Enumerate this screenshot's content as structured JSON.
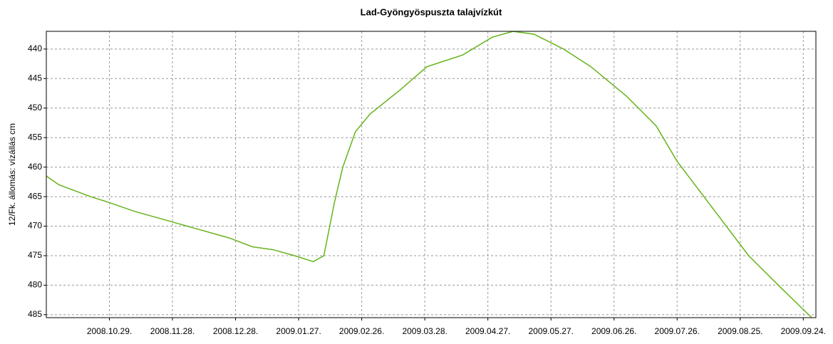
{
  "chart_data": {
    "type": "line",
    "title": "Lad-Gyöngyöspuszta talajvízkút",
    "ylabel": "12/Fk. állomás: vízállás cm",
    "x": [
      "2008.09.29.",
      "2008.10.05.",
      "2008.10.20.",
      "2008.10.29.",
      "2008.11.10.",
      "2008.11.25.",
      "2008.12.10.",
      "2008.12.25.",
      "2009.01.05.",
      "2009.01.15.",
      "2009.01.25.",
      "2009.02.03.",
      "2009.02.08.",
      "2009.02.13.",
      "2009.02.17.",
      "2009.02.23.",
      "2009.03.02.",
      "2009.03.16.",
      "2009.03.29.",
      "2009.04.15.",
      "2009.04.29.",
      "2009.05.09.",
      "2009.05.19.",
      "2009.06.02.",
      "2009.06.15.",
      "2009.07.02.",
      "2009.07.16.",
      "2009.07.26.",
      "2009.08.12.",
      "2009.08.29.",
      "2009.09.15.",
      "2009.09.28."
    ],
    "series": [
      {
        "name": "12/Fk.",
        "color": "#66b31a",
        "values": [
          461.5,
          463,
          465,
          466,
          467.5,
          469,
          470.5,
          472,
          473.5,
          474,
          475,
          476,
          475,
          466,
          460,
          454,
          451,
          447,
          443,
          441,
          438,
          437,
          437.5,
          440,
          443,
          448,
          453,
          459,
          467,
          475,
          481,
          485.5
        ]
      }
    ],
    "xlim": [
      "2008.09.29.",
      "2009.09.30."
    ],
    "xticks": [
      "2008.10.29.",
      "2008.11.28.",
      "2008.12.28.",
      "2009.01.27.",
      "2009.02.26.",
      "2009.03.28.",
      "2009.04.27.",
      "2009.05.27.",
      "2009.06.26.",
      "2009.07.26.",
      "2009.08.25.",
      "2009.09.24."
    ],
    "ylim": [
      437,
      485.5
    ],
    "yticks": [
      440,
      445,
      450,
      455,
      460,
      465,
      470,
      475,
      480,
      485
    ],
    "y_reversed": true,
    "grid": true
  }
}
